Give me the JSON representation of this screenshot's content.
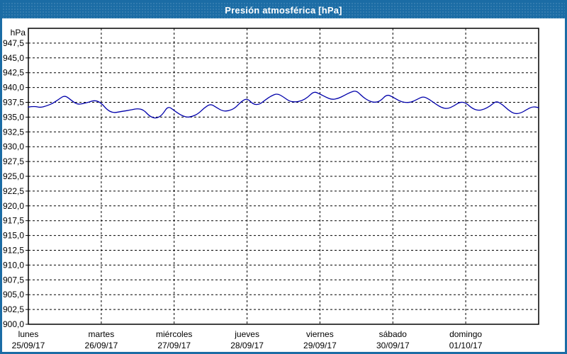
{
  "window": {
    "title": "Presión atmosférica [hPa]"
  },
  "colors": {
    "titlebar": "#1b6ca5",
    "titlebar_text": "#ffffff",
    "plot_border": "#000000",
    "grid": "#000000",
    "line": "#0000aa",
    "background": "#ffffff"
  },
  "chart_data": {
    "type": "line",
    "title": "Presión atmosférica [hPa]",
    "unit_label": "hPa",
    "ylabel": "hPa",
    "ylim": [
      900.0,
      950.0
    ],
    "yticks": [
      900.0,
      902.5,
      905.0,
      907.5,
      910.0,
      912.5,
      915.0,
      917.5,
      920.0,
      922.5,
      925.0,
      927.5,
      930.0,
      932.5,
      935.0,
      937.5,
      940.0,
      942.5,
      945.0,
      947.5
    ],
    "decimal_separator": ",",
    "grid": "dashed",
    "legend": "none",
    "x_days": [
      {
        "name": "lunes",
        "date": "25/09/17"
      },
      {
        "name": "martes",
        "date": "26/09/17"
      },
      {
        "name": "miércoles",
        "date": "27/09/17"
      },
      {
        "name": "jueves",
        "date": "28/09/17"
      },
      {
        "name": "viernes",
        "date": "29/09/17"
      },
      {
        "name": "sábado",
        "date": "30/09/17"
      },
      {
        "name": "domingo",
        "date": "01/10/17"
      }
    ],
    "sample_interval_hours": 2,
    "series": [
      {
        "name": "Presión atmosférica",
        "color": "#0000aa",
        "values": [
          936.7,
          936.85,
          936.6,
          936.9,
          937.3,
          938.0,
          938.7,
          937.9,
          937.15,
          937.25,
          937.55,
          937.85,
          937.4,
          936.2,
          935.7,
          935.9,
          936.05,
          936.25,
          936.45,
          936.2,
          935.1,
          934.75,
          935.3,
          936.9,
          936.1,
          935.4,
          934.95,
          935.1,
          935.6,
          936.6,
          937.25,
          936.6,
          936.0,
          936.05,
          936.5,
          937.6,
          938.2,
          937.15,
          937.1,
          937.9,
          938.6,
          939.0,
          938.4,
          937.65,
          937.55,
          937.75,
          938.35,
          939.35,
          938.9,
          938.35,
          937.95,
          938.15,
          938.65,
          939.2,
          939.5,
          938.45,
          937.75,
          937.45,
          937.75,
          938.85,
          938.4,
          937.75,
          937.45,
          937.5,
          938.0,
          938.5,
          938.0,
          937.25,
          936.6,
          936.4,
          936.85,
          937.55,
          937.45,
          936.5,
          936.1,
          936.3,
          936.85,
          937.75,
          937.15,
          936.2,
          935.55,
          935.65,
          936.25,
          936.8,
          936.6
        ]
      }
    ]
  }
}
